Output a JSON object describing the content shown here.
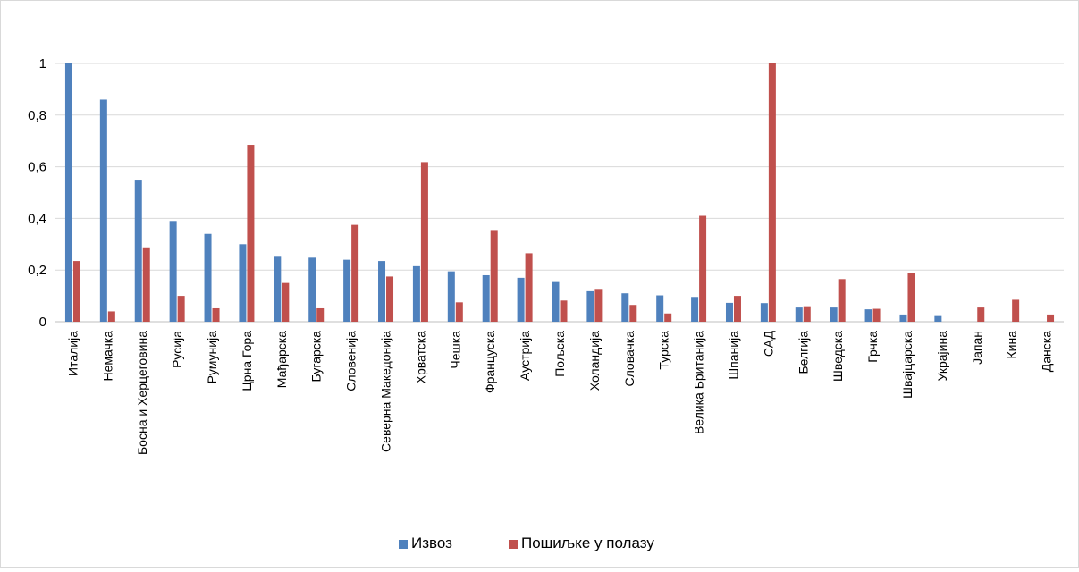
{
  "chart_data": {
    "type": "bar",
    "title": "",
    "xlabel": "",
    "ylabel": "",
    "ylim": [
      0,
      1
    ],
    "yticks": [
      "0",
      "0,2",
      "0,4",
      "0,6",
      "0,8",
      "1"
    ],
    "ytick_values": [
      0,
      0.2,
      0.4,
      0.6,
      0.8,
      1
    ],
    "grid": true,
    "legend_position": "bottom",
    "categories": [
      "Италија",
      "Немачка",
      "Босна и Херцеговина",
      "Русија",
      "Румунија",
      "Црна Гора",
      "Мађарска",
      "Бугарска",
      "Словенија",
      "Северна Македонија",
      "Хрватска",
      "Чешка",
      "Француска",
      "Аустрија",
      "Пољска",
      "Холандија",
      "Словачка",
      "Турска",
      "Велика Британија",
      "Шпанија",
      "САД",
      "Белгија",
      "Шведска",
      "Грчка",
      "Швајцарска",
      "Украјина",
      "Јапан",
      "Кина",
      "Данска"
    ],
    "series": [
      {
        "name": "Извоз",
        "color": "#4f81bd",
        "values": [
          1.0,
          0.86,
          0.55,
          0.39,
          0.34,
          0.3,
          0.255,
          0.248,
          0.24,
          0.235,
          0.215,
          0.195,
          0.18,
          0.17,
          0.157,
          0.118,
          0.11,
          0.102,
          0.096,
          0.073,
          0.072,
          0.055,
          0.055,
          0.048,
          0.028,
          0.022,
          0,
          0,
          0
        ]
      },
      {
        "name": "Пошиљке у полазу",
        "color": "#c0504d",
        "values": [
          0.235,
          0.04,
          0.288,
          0.1,
          0.052,
          0.685,
          0.15,
          0.052,
          0.375,
          0.175,
          0.618,
          0.075,
          0.355,
          0.265,
          0.082,
          0.127,
          0.065,
          0.032,
          0.41,
          0.1,
          1.0,
          0.06,
          0.165,
          0.05,
          0.19,
          0,
          0.055,
          0.085,
          0.028
        ]
      }
    ]
  }
}
